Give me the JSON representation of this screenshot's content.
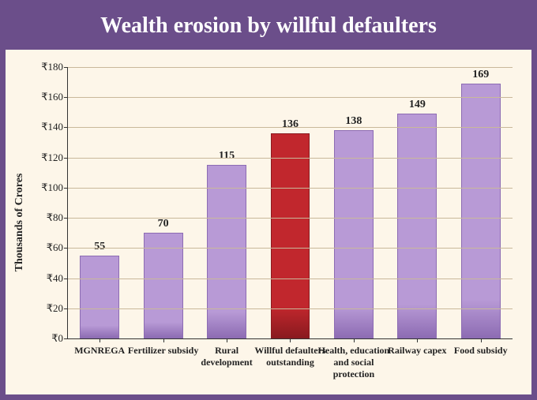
{
  "chart": {
    "type": "bar",
    "title": "Wealth erosion by willful defaulters",
    "title_fontsize": 28,
    "title_color": "#ffffff",
    "title_bg": "#6b4e8a",
    "ylabel": "Thousands of Crores",
    "label_fontsize": 14,
    "background_color": "#fdf6e9",
    "frame_color": "#6b4e8a",
    "grid_color": "#c9b89a",
    "axis_color": "#333333",
    "text_color": "#222222",
    "currency_symbol": "₹",
    "ylim": [
      0,
      180
    ],
    "ytick_step": 20,
    "yticks": [
      0,
      20,
      40,
      60,
      80,
      100,
      120,
      140,
      160,
      180
    ],
    "bar_width": 0.62,
    "categories": [
      "MGNREGA",
      "Fertilizer subsidy",
      "Rural development",
      "Willful defaulters outstanding",
      "Health, education and social protection",
      "Railway capex",
      "Food subsidy"
    ],
    "values": [
      55,
      70,
      115,
      136,
      138,
      149,
      169
    ],
    "bar_colors": [
      "#b89ad6",
      "#b89ad6",
      "#b89ad6",
      "#c1272d",
      "#b89ad6",
      "#b89ad6",
      "#b89ad6"
    ],
    "bar_border_colors": [
      "#8d6cb3",
      "#8d6cb3",
      "#8d6cb3",
      "#8a1a1f",
      "#8d6cb3",
      "#8d6cb3",
      "#8d6cb3"
    ],
    "value_fontsize": 14,
    "category_fontsize": 12
  }
}
